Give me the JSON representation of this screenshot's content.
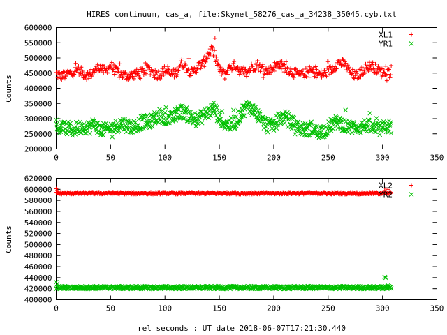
{
  "chart_data": [
    {
      "type": "scatter",
      "title": "HIRES continuum, cas_a, file:Skynet_58276_cas_a_34238_35045.cyb.txt",
      "xlabel": "",
      "ylabel": "Counts",
      "xlim": [
        0,
        350
      ],
      "ylim": [
        200000,
        600000
      ],
      "xticks": [
        0,
        50,
        100,
        150,
        200,
        250,
        300,
        350
      ],
      "yticks": [
        200000,
        250000,
        300000,
        350000,
        400000,
        450000,
        500000,
        550000,
        600000
      ],
      "grid": false,
      "legend_position": "top-right",
      "series": [
        {
          "name": "XL1",
          "marker": "plus",
          "color": "#ff0000",
          "x_range": [
            0,
            308
          ],
          "points": [
            [
              0,
              447000
            ],
            [
              5,
              440000
            ],
            [
              10,
              446000
            ],
            [
              15,
              452000
            ],
            [
              20,
              462000
            ],
            [
              25,
              448000
            ],
            [
              30,
              442000
            ],
            [
              35,
              458000
            ],
            [
              40,
              470000
            ],
            [
              45,
              455000
            ],
            [
              50,
              475000
            ],
            [
              55,
              455000
            ],
            [
              60,
              445000
            ],
            [
              65,
              440000
            ],
            [
              70,
              445000
            ],
            [
              75,
              448000
            ],
            [
              80,
              455000
            ],
            [
              85,
              465000
            ],
            [
              90,
              448000
            ],
            [
              95,
              445000
            ],
            [
              100,
              460000
            ],
            [
              105,
              445000
            ],
            [
              110,
              450000
            ],
            [
              115,
              485000
            ],
            [
              120,
              465000
            ],
            [
              125,
              450000
            ],
            [
              130,
              472000
            ],
            [
              135,
              480000
            ],
            [
              140,
              515000
            ],
            [
              143,
              530000
            ],
            [
              146,
              505000
            ],
            [
              150,
              460000
            ],
            [
              155,
              445000
            ],
            [
              160,
              470000
            ],
            [
              165,
              475000
            ],
            [
              170,
              455000
            ],
            [
              175,
              450000
            ],
            [
              180,
              470000
            ],
            [
              185,
              478000
            ],
            [
              190,
              462000
            ],
            [
              195,
              456000
            ],
            [
              200,
              470000
            ],
            [
              205,
              480000
            ],
            [
              210,
              468000
            ],
            [
              215,
              458000
            ],
            [
              220,
              448000
            ],
            [
              225,
              442000
            ],
            [
              230,
              452000
            ],
            [
              235,
              458000
            ],
            [
              240,
              448000
            ],
            [
              245,
              445000
            ],
            [
              250,
              455000
            ],
            [
              255,
              468000
            ],
            [
              260,
              487000
            ],
            [
              265,
              478000
            ],
            [
              270,
              455000
            ],
            [
              275,
              440000
            ],
            [
              280,
              452000
            ],
            [
              285,
              468000
            ],
            [
              290,
              475000
            ],
            [
              295,
              460000
            ],
            [
              300,
              450000
            ],
            [
              305,
              455000
            ],
            [
              308,
              448000
            ]
          ]
        },
        {
          "name": "YR1",
          "marker": "x",
          "color": "#00c000",
          "x_range": [
            0,
            308
          ],
          "points": [
            [
              0,
              265000
            ],
            [
              5,
              272000
            ],
            [
              10,
              268000
            ],
            [
              15,
              262000
            ],
            [
              20,
              270000
            ],
            [
              25,
              275000
            ],
            [
              30,
              270000
            ],
            [
              35,
              282000
            ],
            [
              40,
              265000
            ],
            [
              45,
              262000
            ],
            [
              50,
              268000
            ],
            [
              55,
              275000
            ],
            [
              60,
              285000
            ],
            [
              65,
              278000
            ],
            [
              70,
              272000
            ],
            [
              75,
              280000
            ],
            [
              80,
              290000
            ],
            [
              85,
              285000
            ],
            [
              90,
              300000
            ],
            [
              95,
              310000
            ],
            [
              100,
              305000
            ],
            [
              105,
              298000
            ],
            [
              110,
              310000
            ],
            [
              115,
              325000
            ],
            [
              120,
              315000
            ],
            [
              125,
              300000
            ],
            [
              130,
              295000
            ],
            [
              135,
              310000
            ],
            [
              140,
              320000
            ],
            [
              145,
              335000
            ],
            [
              150,
              300000
            ],
            [
              155,
              285000
            ],
            [
              160,
              278000
            ],
            [
              165,
              290000
            ],
            [
              170,
              318000
            ],
            [
              175,
              340000
            ],
            [
              180,
              335000
            ],
            [
              185,
              315000
            ],
            [
              190,
              290000
            ],
            [
              195,
              275000
            ],
            [
              200,
              280000
            ],
            [
              205,
              300000
            ],
            [
              210,
              305000
            ],
            [
              215,
              292000
            ],
            [
              220,
              278000
            ],
            [
              225,
              268000
            ],
            [
              230,
              262000
            ],
            [
              235,
              270000
            ],
            [
              240,
              255000
            ],
            [
              245,
              260000
            ],
            [
              250,
              268000
            ],
            [
              255,
              285000
            ],
            [
              260,
              290000
            ],
            [
              265,
              278000
            ],
            [
              270,
              270000
            ],
            [
              275,
              275000
            ],
            [
              280,
              272000
            ],
            [
              285,
              278000
            ],
            [
              290,
              270000
            ],
            [
              295,
              262000
            ],
            [
              300,
              268000
            ],
            [
              305,
              275000
            ],
            [
              308,
              270000
            ]
          ]
        }
      ]
    },
    {
      "type": "scatter",
      "title": "",
      "xlabel": "rel seconds : UT date 2018-06-07T17:21:30.440",
      "ylabel": "Counts",
      "xlim": [
        0,
        350
      ],
      "ylim": [
        400000,
        620000
      ],
      "xticks": [
        0,
        50,
        100,
        150,
        200,
        250,
        300,
        350
      ],
      "yticks": [
        400000,
        420000,
        440000,
        460000,
        480000,
        500000,
        520000,
        540000,
        560000,
        580000,
        600000,
        620000
      ],
      "grid": false,
      "legend_position": "top-right",
      "series": [
        {
          "name": "XL2",
          "marker": "plus",
          "color": "#ff0000",
          "x_range": [
            0,
            308
          ],
          "baseline": 593000,
          "spread": 2000,
          "points": [
            [
              0,
              601000
            ],
            [
              1,
              598000
            ],
            [
              302,
              598000
            ],
            [
              303,
              602000
            ],
            [
              305,
              600000
            ]
          ]
        },
        {
          "name": "YR2",
          "marker": "x",
          "color": "#00c000",
          "x_range": [
            0,
            308
          ],
          "baseline": 422000,
          "spread": 2500,
          "points": [
            [
              0,
              432000
            ],
            [
              1,
              429000
            ],
            [
              302,
              441000
            ],
            [
              303,
              440000
            ],
            [
              305,
              426000
            ]
          ]
        }
      ]
    }
  ]
}
